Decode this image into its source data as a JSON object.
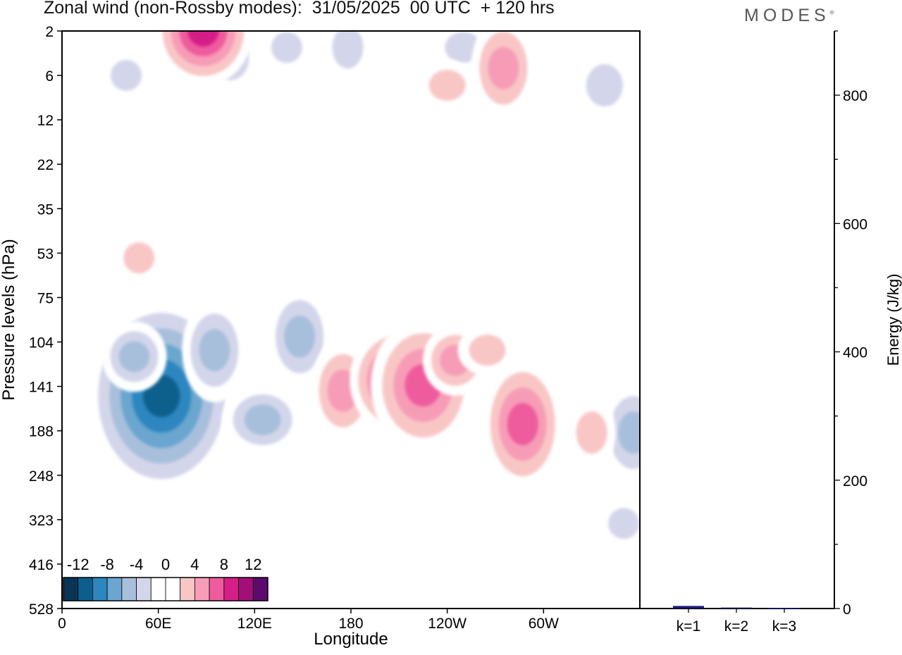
{
  "header": {
    "title": "Zonal wind (non-Rossby modes):  31/05/2025  00 UTC  + 120 hrs",
    "brand": "MODES",
    "brand_mark": "®"
  },
  "chart_data": [
    {
      "type": "heatmap",
      "title": "Zonal wind (non-Rossby modes):  31/05/2025  00 UTC  + 120 hrs",
      "xlabel": "Longitude",
      "ylabel": "Pressure levels (hPa)",
      "x_tick_labels": [
        "0",
        "60E",
        "120E",
        "180",
        "120W",
        "60W"
      ],
      "x_tick_longitudes_deg_east": [
        0,
        60,
        120,
        180,
        240,
        300
      ],
      "xlim": [
        0,
        360
      ],
      "y_tick_labels": [
        "2",
        "6",
        "12",
        "22",
        "35",
        "53",
        "75",
        "104",
        "141",
        "188",
        "248",
        "323",
        "416",
        "528"
      ],
      "y_scale": "model-level (irregular, pressure increasing downward)",
      "colorbar": {
        "labels": [
          "-12",
          "-8",
          "-4",
          "0",
          "4",
          "8",
          "12"
        ],
        "levels": [
          -14,
          -12,
          -10,
          -8,
          -6,
          -4,
          -2,
          2,
          4,
          6,
          8,
          10,
          12,
          14
        ],
        "colors": [
          "#093455",
          "#0c5f8c",
          "#2e86c0",
          "#6aa6cf",
          "#a8bfdc",
          "#d3d6ea",
          "#ffffff",
          "#ffffff",
          "#f9c6c6",
          "#f79cb7",
          "#ef5c9d",
          "#d51f87",
          "#a30f79",
          "#5c0a6c"
        ],
        "placement": "bottom-left"
      },
      "features": [
        {
          "lon": 62,
          "p": 150,
          "value": -13
        },
        {
          "lon": 45,
          "p": 115,
          "value": -6
        },
        {
          "lon": 95,
          "p": 110,
          "value": -7
        },
        {
          "lon": 125,
          "p": 175,
          "value": -7
        },
        {
          "lon": 148,
          "p": 100,
          "value": -6
        },
        {
          "lon": 40,
          "p": 6,
          "value": -5
        },
        {
          "lon": 105,
          "p": 4,
          "value": -5
        },
        {
          "lon": 140,
          "p": 3,
          "value": -4
        },
        {
          "lon": 178,
          "p": 3,
          "value": -4
        },
        {
          "lon": 250,
          "p": 3,
          "value": -4
        },
        {
          "lon": 356,
          "p": 190,
          "value": -6
        },
        {
          "lon": 350,
          "p": 330,
          "value": -4
        },
        {
          "lon": 338,
          "p": 7,
          "value": -4
        },
        {
          "lon": 88,
          "p": 2,
          "value": 10
        },
        {
          "lon": 275,
          "p": 5,
          "value": 7
        },
        {
          "lon": 240,
          "p": 7,
          "value": 4
        },
        {
          "lon": 175,
          "p": 145,
          "value": 7
        },
        {
          "lon": 210,
          "p": 135,
          "value": 11
        },
        {
          "lon": 225,
          "p": 140,
          "value": 8
        },
        {
          "lon": 245,
          "p": 118,
          "value": 7
        },
        {
          "lon": 287,
          "p": 180,
          "value": 8
        },
        {
          "lon": 265,
          "p": 110,
          "value": 5
        },
        {
          "lon": 330,
          "p": 190,
          "value": 5
        },
        {
          "lon": 48,
          "p": 55,
          "value": 5
        },
        {
          "lon": 12,
          "p": 70,
          "value": 2
        },
        {
          "lon": 225,
          "p": 320,
          "value": 3
        }
      ]
    },
    {
      "type": "bar",
      "categories": [
        "k=1",
        "k=2",
        "k=3"
      ],
      "values": [
        4,
        1.5,
        1
      ],
      "ylabel": "Energy (J/kg)",
      "ylim": [
        0,
        900
      ],
      "y_tick_labels": [
        "0",
        "200",
        "400",
        "600",
        "800"
      ],
      "bar_color": "#1a1a7a"
    }
  ]
}
